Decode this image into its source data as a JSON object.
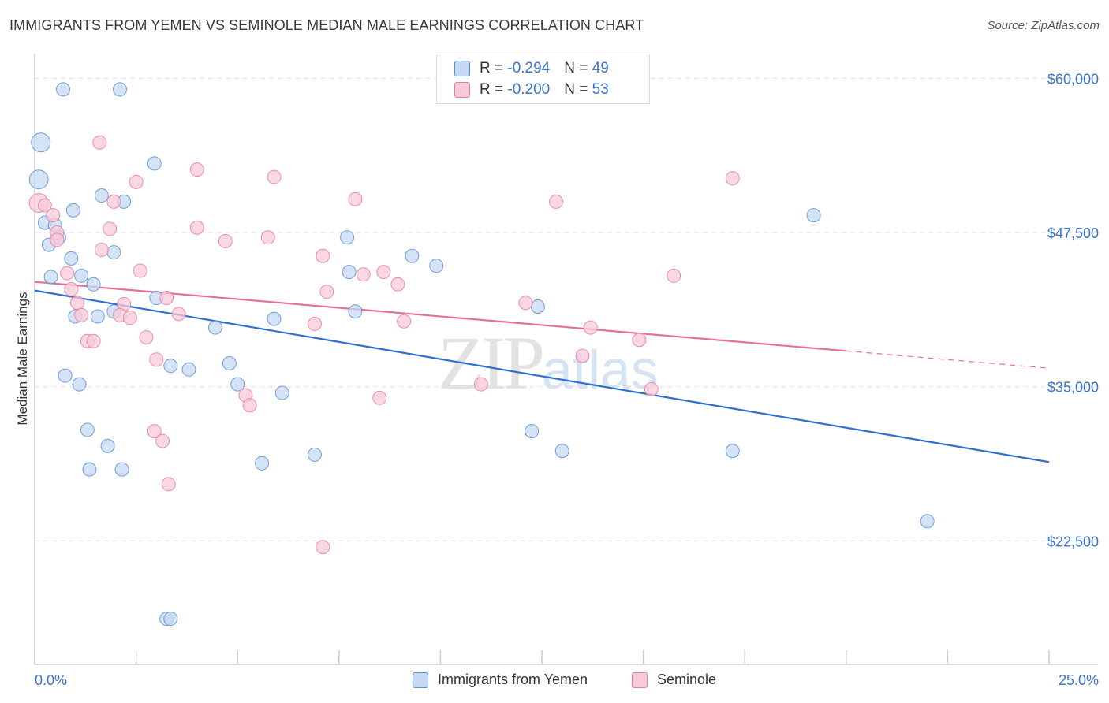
{
  "title": "IMMIGRANTS FROM YEMEN VS SEMINOLE MEDIAN MALE EARNINGS CORRELATION CHART",
  "source": "Source: ZipAtlas.com",
  "watermark": {
    "zip": "ZIP",
    "atlas": "atlas"
  },
  "legend": {
    "rows": [
      {
        "r_label": "R = ",
        "r_value": "-0.294",
        "n_label": "N = ",
        "n_value": "49"
      },
      {
        "r_label": "R = ",
        "r_value": "-0.200",
        "n_label": "N = ",
        "n_value": "53"
      }
    ]
  },
  "chart_data": {
    "type": "scatter",
    "ylabel": "Median Male Earnings",
    "xlim": [
      0,
      25
    ],
    "ylim": [
      12500,
      62000
    ],
    "x_tick_labels": [
      "0.0%",
      "25.0%"
    ],
    "y_ticks": [
      22500,
      35000,
      47500,
      60000
    ],
    "y_tick_labels": [
      "$22,500",
      "$35,000",
      "$47,500",
      "$60,000"
    ],
    "grid": true,
    "legend_position": "top-center",
    "series": [
      {
        "name": "Immigrants from Yemen",
        "color": "#5b8fd9",
        "fill": "#c6d9f2",
        "trend": {
          "x": [
            0,
            25
          ],
          "y": [
            42800,
            28900
          ],
          "dashed_from": null
        },
        "points": [
          [
            0.7,
            59100
          ],
          [
            2.1,
            59100
          ],
          [
            0.15,
            54800
          ],
          [
            2.95,
            53100
          ],
          [
            0.1,
            51800
          ],
          [
            1.65,
            50500
          ],
          [
            2.2,
            50000
          ],
          [
            0.95,
            49300
          ],
          [
            0.25,
            48300
          ],
          [
            0.5,
            48100
          ],
          [
            0.6,
            47100
          ],
          [
            0.35,
            46500
          ],
          [
            1.95,
            45900
          ],
          [
            0.9,
            45400
          ],
          [
            0.4,
            43900
          ],
          [
            1.15,
            44000
          ],
          [
            1.45,
            43300
          ],
          [
            3.0,
            42200
          ],
          [
            1.55,
            40700
          ],
          [
            1.0,
            40700
          ],
          [
            1.95,
            41100
          ],
          [
            4.45,
            39800
          ],
          [
            0.75,
            35900
          ],
          [
            1.1,
            35200
          ],
          [
            3.35,
            36700
          ],
          [
            3.8,
            36400
          ],
          [
            4.8,
            36900
          ],
          [
            5.0,
            35200
          ],
          [
            1.3,
            31500
          ],
          [
            1.8,
            30200
          ],
          [
            1.35,
            28300
          ],
          [
            2.15,
            28300
          ],
          [
            5.6,
            28800
          ],
          [
            6.9,
            29500
          ],
          [
            7.7,
            47100
          ],
          [
            7.75,
            44300
          ],
          [
            7.9,
            41100
          ],
          [
            9.3,
            45600
          ],
          [
            9.9,
            44800
          ],
          [
            5.9,
            40500
          ],
          [
            6.1,
            34500
          ],
          [
            3.25,
            16200
          ],
          [
            3.35,
            16200
          ],
          [
            12.4,
            41500
          ],
          [
            12.25,
            31400
          ],
          [
            13.0,
            29800
          ],
          [
            17.2,
            29800
          ],
          [
            19.2,
            48900
          ],
          [
            22.0,
            24100
          ]
        ]
      },
      {
        "name": "Seminole",
        "color": "#e77ca0",
        "fill": "#f8c9d8",
        "trend": {
          "x": [
            0,
            20,
            25
          ],
          "y": [
            43500,
            37900,
            36500
          ],
          "dashed_from": 20
        },
        "points": [
          [
            0.1,
            49900
          ],
          [
            0.25,
            49700
          ],
          [
            0.45,
            48900
          ],
          [
            0.55,
            47500
          ],
          [
            1.6,
            54800
          ],
          [
            4.0,
            52600
          ],
          [
            5.9,
            52000
          ],
          [
            2.5,
            51600
          ],
          [
            1.95,
            50000
          ],
          [
            0.55,
            46900
          ],
          [
            1.85,
            47800
          ],
          [
            4.0,
            47900
          ],
          [
            4.7,
            46800
          ],
          [
            5.75,
            47100
          ],
          [
            1.65,
            46100
          ],
          [
            0.8,
            44200
          ],
          [
            2.6,
            44400
          ],
          [
            7.1,
            45600
          ],
          [
            7.9,
            50200
          ],
          [
            8.1,
            44100
          ],
          [
            8.6,
            44300
          ],
          [
            8.95,
            43300
          ],
          [
            7.2,
            42700
          ],
          [
            0.9,
            42900
          ],
          [
            1.05,
            41800
          ],
          [
            1.15,
            40800
          ],
          [
            2.2,
            41700
          ],
          [
            3.25,
            42200
          ],
          [
            2.1,
            40800
          ],
          [
            2.35,
            40600
          ],
          [
            3.55,
            40900
          ],
          [
            6.9,
            40100
          ],
          [
            9.1,
            40300
          ],
          [
            1.3,
            38700
          ],
          [
            1.45,
            38700
          ],
          [
            2.75,
            39000
          ],
          [
            3.0,
            37200
          ],
          [
            5.2,
            34300
          ],
          [
            5.3,
            33500
          ],
          [
            8.5,
            34100
          ],
          [
            11.0,
            35200
          ],
          [
            12.1,
            41800
          ],
          [
            12.85,
            50000
          ],
          [
            13.5,
            37500
          ],
          [
            13.7,
            39800
          ],
          [
            14.9,
            38800
          ],
          [
            15.2,
            34800
          ],
          [
            15.75,
            44000
          ],
          [
            17.2,
            51900
          ],
          [
            2.95,
            31400
          ],
          [
            3.15,
            30600
          ],
          [
            3.3,
            27100
          ],
          [
            7.1,
            22000
          ]
        ]
      }
    ]
  }
}
